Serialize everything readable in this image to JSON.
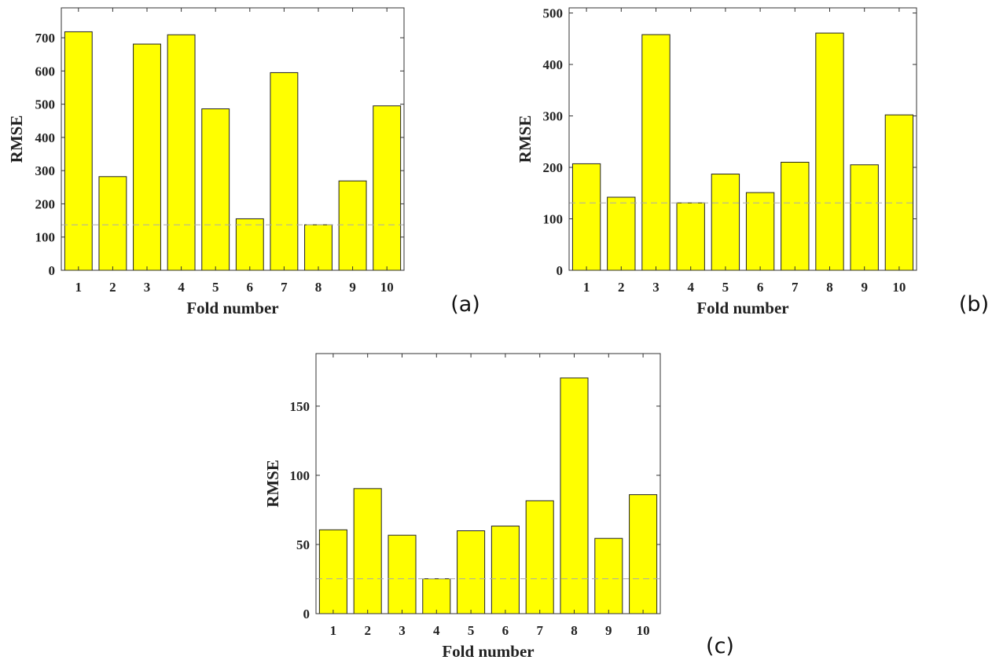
{
  "chart_data": [
    {
      "type": "bar",
      "panel_label": "(a)",
      "title": "",
      "xlabel": "Fold number",
      "ylabel": "RMSE",
      "categories": [
        "1",
        "2",
        "3",
        "4",
        "5",
        "6",
        "7",
        "8",
        "9",
        "10"
      ],
      "values": [
        718,
        282,
        681,
        709,
        486,
        155,
        595,
        137,
        269,
        495
      ],
      "ylim": [
        0,
        790
      ],
      "yticks": [
        0,
        100,
        200,
        300,
        400,
        500,
        600,
        700
      ],
      "reference_line": 137,
      "grid": false,
      "colors": {
        "bar": "#ffff00",
        "bar_edge": "#222222",
        "reference_line": "#aaaaaa"
      }
    },
    {
      "type": "bar",
      "panel_label": "(b)",
      "title": "",
      "xlabel": "Fold number",
      "ylabel": "RMSE",
      "categories": [
        "1",
        "2",
        "3",
        "4",
        "5",
        "6",
        "7",
        "8",
        "9",
        "10"
      ],
      "values": [
        207,
        142,
        458,
        131,
        187,
        151,
        210,
        461,
        205,
        302
      ],
      "ylim": [
        0,
        510
      ],
      "yticks": [
        0,
        100,
        200,
        300,
        400,
        500
      ],
      "reference_line": 131,
      "grid": false,
      "colors": {
        "bar": "#ffff00",
        "bar_edge": "#222222",
        "reference_line": "#aaaaaa"
      }
    },
    {
      "type": "bar",
      "panel_label": "(c)",
      "title": "",
      "xlabel": "Fold number",
      "ylabel": "RMSE",
      "categories": [
        "1",
        "2",
        "3",
        "4",
        "5",
        "6",
        "7",
        "8",
        "9",
        "10"
      ],
      "values": [
        60.6,
        90.4,
        56.7,
        25.2,
        59.9,
        63.3,
        81.6,
        170.4,
        54.4,
        86.0
      ],
      "ylim": [
        0,
        188
      ],
      "yticks": [
        0,
        50,
        100,
        150
      ],
      "reference_line": 25.2,
      "grid": false,
      "colors": {
        "bar": "#ffff00",
        "bar_edge": "#222222",
        "reference_line": "#aaaaaa"
      }
    }
  ]
}
